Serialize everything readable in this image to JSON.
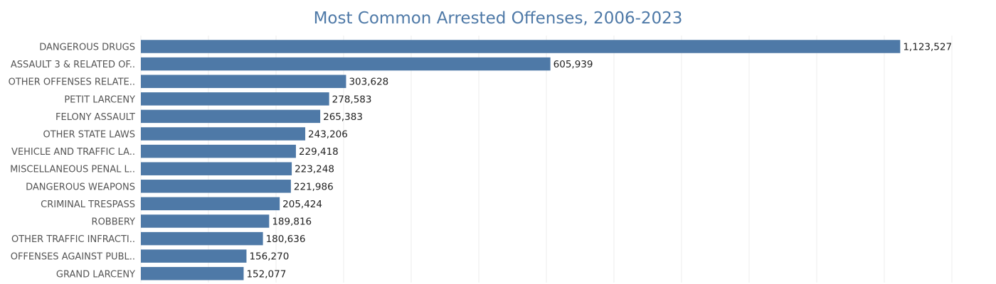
{
  "chart_data": {
    "type": "bar",
    "orientation": "horizontal",
    "title": "Most Common Arrested Offenses, 2006-2023",
    "xlabel": "",
    "ylabel": "",
    "grid": true,
    "xlim": [
      0,
      1200000
    ],
    "color": "#4e79a7",
    "categories": [
      "DANGEROUS DRUGS",
      "ASSAULT 3 & RELATED OF..",
      "OTHER OFFENSES RELATE..",
      "PETIT LARCENY",
      "FELONY ASSAULT",
      "OTHER STATE LAWS",
      "VEHICLE AND TRAFFIC LA..",
      "MISCELLANEOUS PENAL L..",
      "DANGEROUS WEAPONS",
      "CRIMINAL TRESPASS",
      "ROBBERY",
      "OTHER TRAFFIC INFRACTI..",
      "OFFENSES AGAINST PUBL..",
      "GRAND LARCENY"
    ],
    "values": [
      1123527,
      605939,
      303628,
      278583,
      265383,
      243206,
      229418,
      223248,
      221986,
      205424,
      189816,
      180636,
      156270,
      152077
    ],
    "value_labels": [
      "1,123,527",
      "605,939",
      "303,628",
      "278,583",
      "265,383",
      "243,206",
      "229,418",
      "223,248",
      "221,986",
      "205,424",
      "189,816",
      "180,636",
      "156,270",
      "152,077"
    ]
  }
}
